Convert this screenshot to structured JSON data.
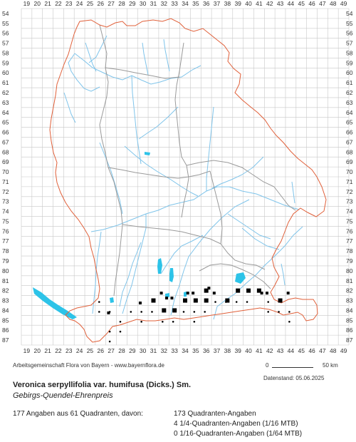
{
  "map": {
    "x_labels": [
      "19",
      "20",
      "21",
      "22",
      "23",
      "24",
      "25",
      "26",
      "27",
      "28",
      "29",
      "30",
      "31",
      "32",
      "33",
      "34",
      "35",
      "36",
      "37",
      "38",
      "39",
      "40",
      "41",
      "42",
      "43",
      "44",
      "45",
      "46",
      "47",
      "48",
      "49"
    ],
    "y_labels": [
      "54",
      "55",
      "56",
      "57",
      "58",
      "59",
      "60",
      "61",
      "62",
      "63",
      "64",
      "65",
      "66",
      "67",
      "68",
      "69",
      "70",
      "71",
      "72",
      "73",
      "74",
      "75",
      "76",
      "77",
      "78",
      "79",
      "80",
      "81",
      "82",
      "83",
      "84",
      "85",
      "86",
      "87"
    ],
    "colors": {
      "grid": "#c8c8c8",
      "border": "#e0603a",
      "districts": "#9a9a9a",
      "rivers": "#7fc4ea",
      "lakes": "#2dc3e8",
      "markers": "#000000"
    },
    "records_16": [
      {
        "col": 31,
        "row": 83
      },
      {
        "col": 32,
        "row": 84
      },
      {
        "col": 33,
        "row": 84
      },
      {
        "col": 34,
        "row": 83
      },
      {
        "col": 35,
        "row": 83
      },
      {
        "col": 36,
        "row": 83
      },
      {
        "col": 36,
        "row": 82
      },
      {
        "col": 38,
        "row": 83
      },
      {
        "col": 39,
        "row": 82
      },
      {
        "col": 40,
        "row": 82
      },
      {
        "col": 41,
        "row": 82
      },
      {
        "col": 43,
        "row": 83
      }
    ],
    "records_4": [
      {
        "col": 27,
        "row": 84,
        "q": 3
      },
      {
        "col": 30,
        "row": 83,
        "q": 3
      },
      {
        "col": 32,
        "row": 82,
        "q": 3
      },
      {
        "col": 32,
        "row": 83,
        "q": 2
      },
      {
        "col": 33,
        "row": 83,
        "q": 1
      },
      {
        "col": 34,
        "row": 82,
        "q": 4
      },
      {
        "col": 35,
        "row": 82,
        "q": 3
      },
      {
        "col": 36,
        "row": 82,
        "q": 2
      },
      {
        "col": 37,
        "row": 82,
        "q": 3
      },
      {
        "col": 41,
        "row": 82,
        "q": 4
      },
      {
        "col": 42,
        "row": 82,
        "q": 3
      },
      {
        "col": 44,
        "row": 82,
        "q": 3
      }
    ],
    "records_dot": [
      {
        "col": 26,
        "row": 83
      },
      {
        "col": 26,
        "row": 84
      },
      {
        "col": 27,
        "row": 84
      },
      {
        "col": 27,
        "row": 86
      },
      {
        "col": 27,
        "row": 87
      },
      {
        "col": 28,
        "row": 85
      },
      {
        "col": 28,
        "row": 86
      },
      {
        "col": 29,
        "row": 84
      },
      {
        "col": 30,
        "row": 84
      },
      {
        "col": 30,
        "row": 85
      },
      {
        "col": 31,
        "row": 84
      },
      {
        "col": 32,
        "row": 85
      },
      {
        "col": 33,
        "row": 85
      },
      {
        "col": 34,
        "row": 84
      },
      {
        "col": 35,
        "row": 84
      },
      {
        "col": 36,
        "row": 84
      },
      {
        "col": 38,
        "row": 83
      },
      {
        "col": 42,
        "row": 84
      },
      {
        "col": 43,
        "row": 84
      },
      {
        "col": 44,
        "row": 84
      },
      {
        "col": 44,
        "row": 85
      },
      {
        "col": 37,
        "row": 83
      },
      {
        "col": 35,
        "row": 85
      },
      {
        "col": 39,
        "row": 83
      },
      {
        "col": 40,
        "row": 83
      },
      {
        "col": 42,
        "row": 83
      }
    ]
  },
  "footer": {
    "credit": "Arbeitsgemeinschaft Flora von Bayern - www.bayernflora.de",
    "scale_start": "0",
    "scale_end": "50 km",
    "datum": "Datenstand: 05.06.2025",
    "scientific_name": "Veronica serpyllifolia var. humifusa (Dicks.) Sm.",
    "common_name": "Gebirgs-Quendel-Ehrenpreis",
    "summary": "177 Angaben aus 61 Quadranten, davon:",
    "stat_quadrant": "173 Quadranten-Angaben",
    "stat_quarter": "4 1/4-Quadranten-Angaben (1/16 MTB)",
    "stat_sixteenth": "0 1/16-Quadranten-Angaben (1/64 MTB)"
  }
}
